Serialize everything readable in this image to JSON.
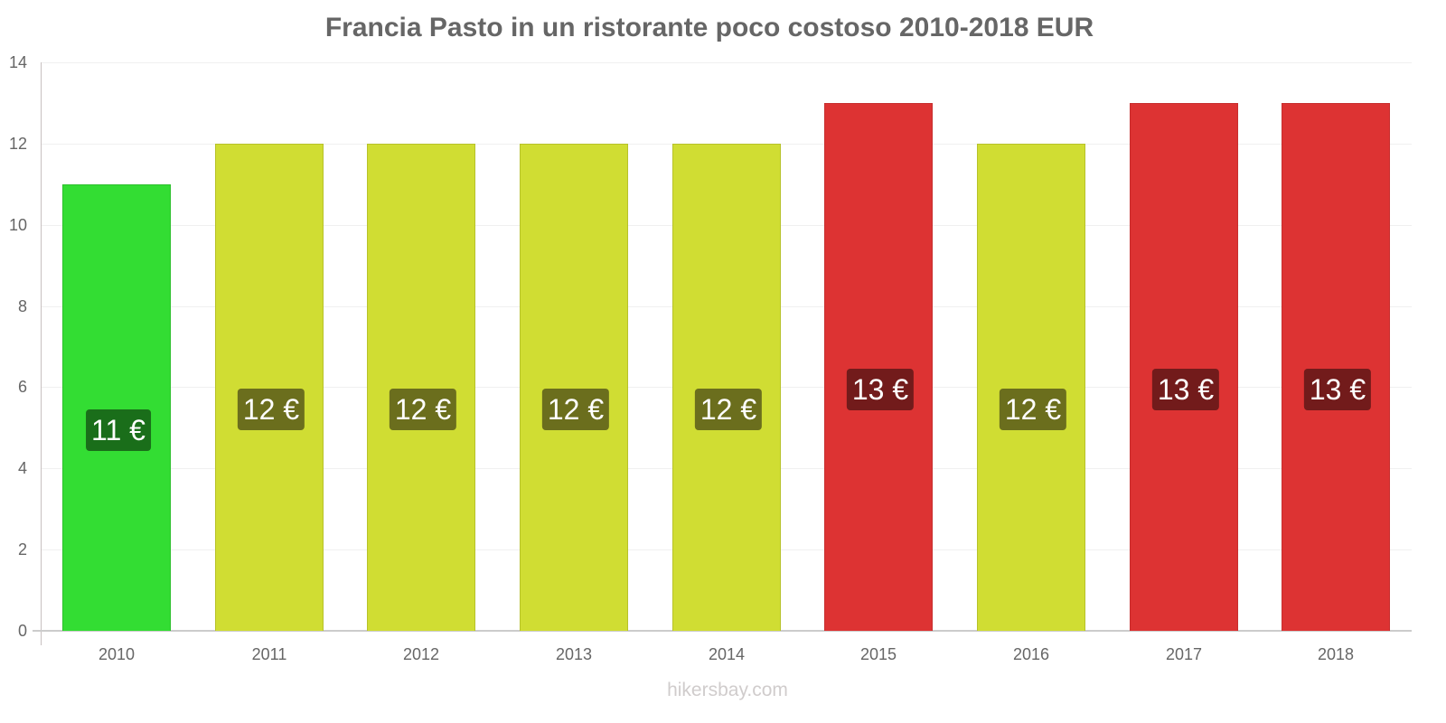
{
  "title": "Francia Pasto in un ristorante poco costoso 2010-2018 EUR",
  "watermark": "hikersbay.com",
  "colors": {
    "low": "#33dd33",
    "low_border": "#2bc02b",
    "low_badge": "#1a6e1a",
    "mid": "#d0dd33",
    "mid_border": "#b7c22a",
    "mid_badge": "#6b6e1d",
    "high": "#dd3333",
    "high_border": "#c72e2e",
    "high_badge": "#721b1b"
  },
  "y_ticks": [
    "0",
    "2",
    "4",
    "6",
    "8",
    "10",
    "12",
    "14"
  ],
  "chart_data": {
    "type": "bar",
    "title": "Francia Pasto in un ristorante poco costoso 2010-2018 EUR",
    "xlabel": "",
    "ylabel": "",
    "ylim": [
      0,
      14
    ],
    "grid": true,
    "categories": [
      "2010",
      "2011",
      "2012",
      "2013",
      "2014",
      "2015",
      "2016",
      "2017",
      "2018"
    ],
    "values": [
      11,
      12,
      12,
      12,
      12,
      13,
      12,
      13,
      13
    ],
    "data_labels": [
      "11 €",
      "12 €",
      "12 €",
      "12 €",
      "12 €",
      "13 €",
      "12 €",
      "13 €",
      "13 €"
    ],
    "bar_color_levels": [
      "low",
      "mid",
      "mid",
      "mid",
      "mid",
      "high",
      "mid",
      "high",
      "high"
    ]
  }
}
